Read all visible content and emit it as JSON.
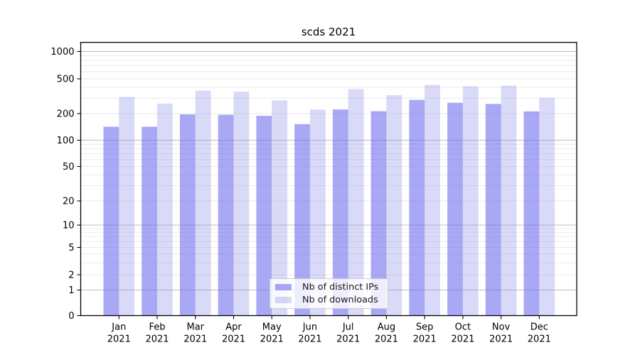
{
  "chart_data": {
    "type": "bar",
    "title": "scds 2021",
    "categories": [
      "Jan",
      "Feb",
      "Mar",
      "Apr",
      "May",
      "Jun",
      "Jul",
      "Aug",
      "Sep",
      "Oct",
      "Nov",
      "Dec"
    ],
    "category_year_line": "2021",
    "series": [
      {
        "name": "Nb of distinct IPs",
        "color": "rgba(115,115,237,0.62)",
        "values": [
          142,
          142,
          196,
          194,
          189,
          152,
          223,
          213,
          287,
          266,
          258,
          212
        ]
      },
      {
        "name": "Nb of downloads",
        "color": "rgba(146,146,235,0.35)",
        "values": [
          310,
          260,
          366,
          356,
          283,
          222,
          381,
          325,
          425,
          410,
          417,
          305
        ]
      }
    ],
    "xlabel": "",
    "ylabel": "",
    "yscale": "symlog",
    "y_ticks": [
      0,
      1,
      2,
      5,
      10,
      20,
      50,
      100,
      200,
      500,
      1000
    ],
    "ylim": [
      0,
      1300
    ],
    "grid": true,
    "legend_position": "lower center",
    "colors": {
      "bar_dark_hex": "#a8a8f4",
      "bar_light_hex": "#d9d9f8",
      "major_grid": "#bcbcbc",
      "minor_grid": "#e9e9e9",
      "axis": "#000000"
    }
  }
}
